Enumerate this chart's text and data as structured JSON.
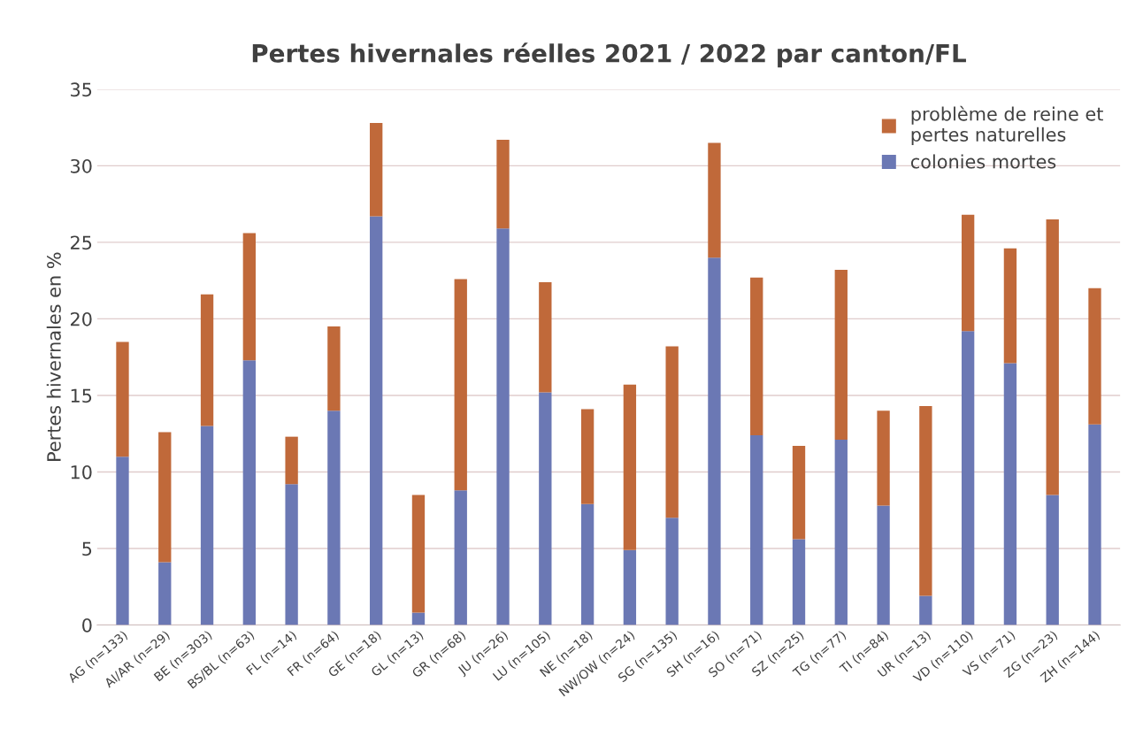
{
  "chart_data": {
    "type": "bar",
    "title": "Pertes hivernales réelles 2021 / 2022 par canton/FL",
    "ylabel": "Pertes hivernales en %",
    "categories": [
      "AG (n=133)",
      "AI/AR (n=29)",
      "BE (n=303)",
      "BS/BL (n=63)",
      "FL (n=14)",
      "FR (n=64)",
      "GE (n=18)",
      "GL (n=13)",
      "GR (n=68)",
      "JU (n=26)",
      "LU (n=105)",
      "NE (n=18)",
      "NW/OW (n=24)",
      "SG (n=135)",
      "SH (n=16)",
      "SO (n=71)",
      "SZ (n=25)",
      "TG (n=77)",
      "TI (n=84)",
      "UR (n=13)",
      "VD (n=110)",
      "VS (n=71)",
      "ZG (n=23)",
      "ZH (n=144)"
    ],
    "stacked": true,
    "series": [
      {
        "name": "colonies mortes",
        "color": "#6b78b4",
        "values": [
          11.0,
          4.1,
          13.0,
          17.3,
          9.2,
          14.0,
          26.7,
          0.8,
          8.8,
          25.9,
          15.2,
          7.9,
          4.9,
          7.0,
          24.0,
          12.4,
          5.6,
          12.1,
          7.8,
          1.9,
          19.2,
          17.1,
          8.5,
          13.1
        ]
      },
      {
        "name": "problème de reine et\npertes naturelles",
        "color": "#c0693a",
        "values": [
          7.5,
          8.5,
          8.6,
          8.3,
          3.1,
          5.5,
          6.1,
          7.7,
          13.8,
          5.8,
          7.2,
          6.2,
          10.8,
          11.2,
          7.5,
          10.3,
          6.1,
          11.1,
          6.2,
          12.4,
          7.6,
          7.5,
          18.0,
          8.9
        ]
      }
    ],
    "ylim": [
      0,
      35
    ],
    "yticks": [
      0,
      5,
      10,
      15,
      20,
      25,
      30,
      35
    ],
    "grid": "y",
    "legend": "top right"
  }
}
